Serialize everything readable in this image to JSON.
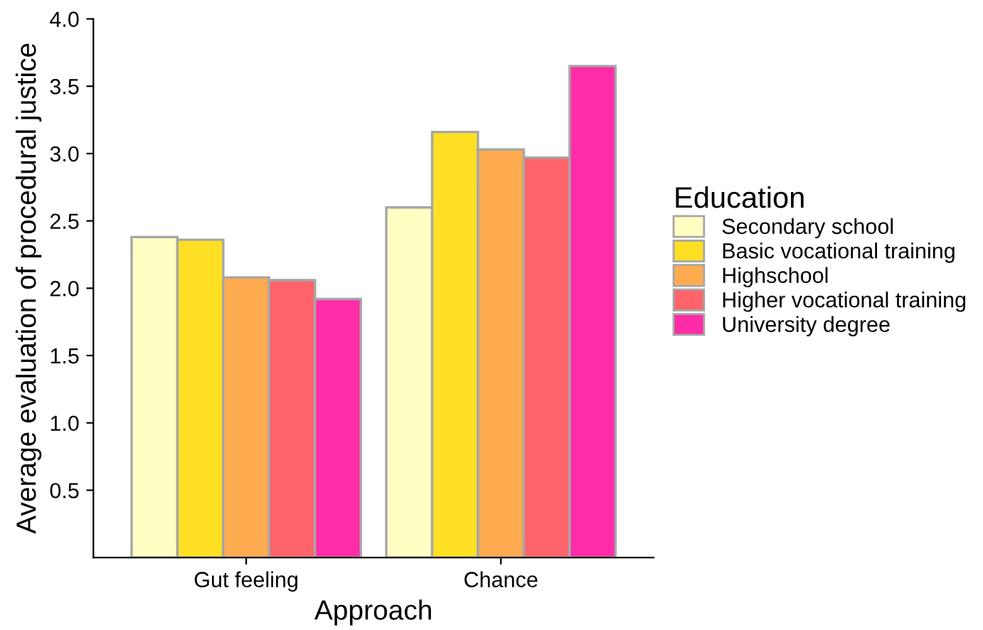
{
  "chart_data": {
    "type": "bar",
    "xlabel": "Approach",
    "ylabel": "Average evaluation of procedural justice",
    "legend_title": "Education",
    "categories": [
      "Gut feeling",
      "Chance"
    ],
    "series": [
      {
        "name": "Secondary school",
        "color": "#ffffc4",
        "values": [
          2.38,
          2.6
        ]
      },
      {
        "name": "Basic vocational training",
        "color": "#ffdf24",
        "values": [
          2.36,
          3.16
        ]
      },
      {
        "name": "Highschool",
        "color": "#ffab50",
        "values": [
          2.08,
          3.03
        ]
      },
      {
        "name": "Higher vocational training",
        "color": "#ff646a",
        "values": [
          2.06,
          2.97
        ]
      },
      {
        "name": "University degree",
        "color": "#ff2ca8",
        "values": [
          1.92,
          3.65
        ]
      }
    ],
    "ylim": [
      0,
      4.0
    ],
    "yticks": [
      0.5,
      {
        "value": 1,
        "label": "1.0"
      },
      1.5,
      {
        "value": 2,
        "label": "2.0"
      },
      2.5,
      {
        "value": 3,
        "label": "3.0"
      },
      3.5,
      {
        "value": 4,
        "label": "4.0"
      }
    ],
    "grid": false,
    "legend": "right"
  }
}
